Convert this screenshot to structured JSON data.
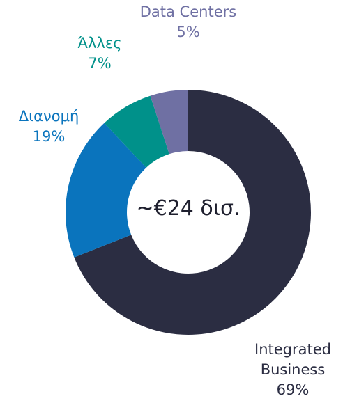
{
  "chart_data": {
    "type": "donut",
    "center_label": "~€24 δισ.",
    "categories": [
      "Integrated Business",
      "Διανομή",
      "Άλλες",
      "Data Centers"
    ],
    "values": [
      69,
      19,
      7,
      5
    ],
    "value_labels": [
      "69%",
      "19%",
      "7%",
      "5%"
    ],
    "colors": [
      "#2b2d42",
      "#0a74bd",
      "#00918a",
      "#6f70a3"
    ]
  }
}
